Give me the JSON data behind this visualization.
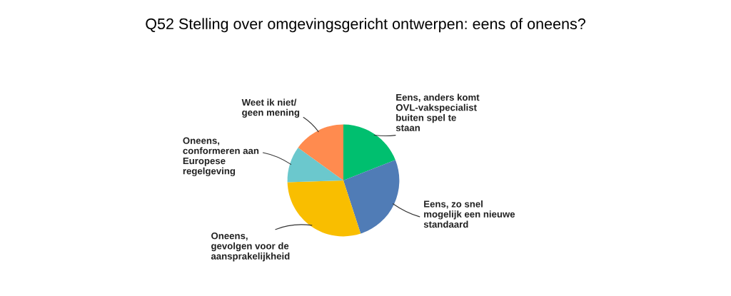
{
  "chart_data": {
    "type": "pie",
    "title": "Q52 Stelling over omgevingsgericht ontwerpen: eens of oneens?",
    "categories": [
      "Eens, anders komt\nOVL-vakspecialist\nbuiten spel te\nstaan",
      "Eens, zo snel\nmogelijk een nieuwe\nstandaard",
      "Oneens,\ngevolgen voor de\naansprakelijkheid",
      "Oneens,\nconformeren aan\nEuropese\nregelgeving",
      "Weet ik niet/\ngeen mening"
    ],
    "values": [
      19,
      26,
      29.5,
      10.5,
      15
    ],
    "colors": [
      "#00bf6f",
      "#507cb6",
      "#f9be00",
      "#6bc8cd",
      "#ff8b4f"
    ],
    "legend": false
  }
}
